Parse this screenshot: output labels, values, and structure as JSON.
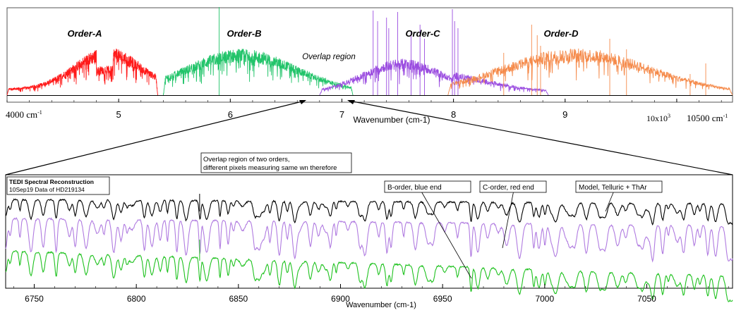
{
  "colors": {
    "order_a": "#ff1a1a",
    "order_b": "#22c46a",
    "order_c": "#9b4de0",
    "order_d": "#f58a4a",
    "model": "#000000",
    "b_trace": "#1fc21f",
    "c_trace": "#b07be0",
    "frame": "#000000"
  },
  "top_panel": {
    "order_labels": [
      "Order-A",
      "Order-B",
      "Order-C",
      "Order-D"
    ],
    "overlap_label": "Overlap region",
    "xlabel": "Wavenumber (cm-1)",
    "left_end_label": "4000 cm",
    "left_end_sup": "-1",
    "right_end_label": "10500 cm",
    "right_end_sup": "-1",
    "multiplier_label": "10x10",
    "multiplier_sup": "3",
    "tick_labels": [
      "5",
      "6",
      "7",
      "8",
      "9"
    ]
  },
  "bottom_panel": {
    "title": "TEDI Spectral Reconstruction",
    "subtitle": "10Sep19 Data of HD219134",
    "callout_overlap_line1": "Overlap region of two orders,",
    "callout_overlap_line2": "different pixels measuring same wn therefore",
    "callout_b": "B-order, blue end",
    "callout_c": "C-order, red end",
    "callout_model": "Model, Telluric + ThAr",
    "xlabel": "Wavenumber (cm-1)",
    "tick_labels": [
      "6750",
      "6800",
      "6850",
      "6900",
      "6950",
      "7000",
      "7050"
    ]
  },
  "chart_data": [
    {
      "type": "line",
      "xlabel": "Wavenumber (cm-1)",
      "xlim": [
        4000,
        10500
      ],
      "x_ticks": [
        5000,
        6000,
        7000,
        8000,
        9000,
        10000
      ],
      "series": [
        {
          "name": "Order-A",
          "x_range": [
            4000,
            5350
          ]
        },
        {
          "name": "Order-B",
          "x_range": [
            5400,
            7100
          ]
        },
        {
          "name": "Order-C",
          "x_range": [
            6800,
            8850
          ]
        },
        {
          "name": "Order-D",
          "x_range": [
            7950,
            10500
          ]
        }
      ],
      "annotations": [
        "Overlap region"
      ]
    },
    {
      "type": "line",
      "title": "TEDI Spectral Reconstruction",
      "subtitle": "10Sep19 Data of HD219134",
      "xlabel": "Wavenumber (cm-1)",
      "xlim": [
        6736,
        7092
      ],
      "x_ticks": [
        6750,
        6800,
        6850,
        6900,
        6950,
        7000,
        7050
      ],
      "series": [
        {
          "name": "Model, Telluric + ThAr"
        },
        {
          "name": "C-order, red end"
        },
        {
          "name": "B-order, blue end"
        }
      ]
    }
  ]
}
